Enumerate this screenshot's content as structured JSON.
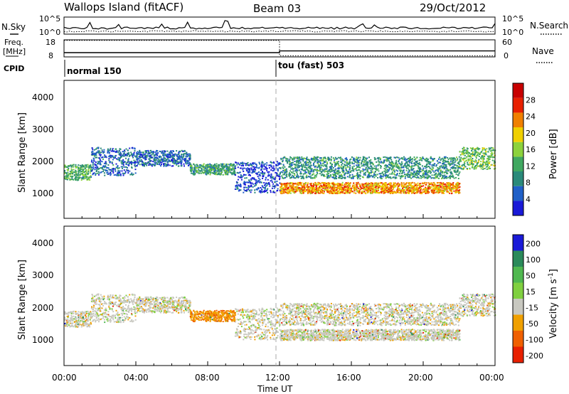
{
  "header": {
    "station": "Wallops Island (fitACF)",
    "beam": "Beam 03",
    "date": "29/Oct/2012"
  },
  "noise_panel": {
    "left_label": "N.Sky",
    "right_label": "N.Search",
    "left_ticks": [
      "10^5",
      "10^0"
    ],
    "right_ticks": [
      "10^5",
      "10^0"
    ]
  },
  "freq_panel": {
    "left_label_line1": "Freq.",
    "left_label_line2": "[MHz]",
    "right_label": "Nave",
    "left_ticks": [
      "18",
      "8"
    ],
    "right_ticks": [
      "60",
      "0"
    ],
    "switch_time_hours": 12.0,
    "freq_before_mhz": 10.5,
    "freq_after_mhz": 11.5,
    "nave_before": 58,
    "nave_after": 4
  },
  "cpid_panel": {
    "label": "CPID",
    "modes": [
      {
        "label": "normal 150",
        "start_hours": 0.0
      },
      {
        "label": "tou (fast) 503",
        "start_hours": 12.0
      }
    ]
  },
  "x_axis": {
    "label": "Time UT",
    "tick_labels": [
      "00:00",
      "04:00",
      "08:00",
      "12:00",
      "16:00",
      "20:00",
      "00:00"
    ],
    "range_hours": [
      0,
      24
    ]
  },
  "power_panel": {
    "ylabel": "Slant Range [km]",
    "y_ticks": [
      "1000",
      "2000",
      "3000",
      "4000"
    ],
    "colorbar_label": "Power [dB]",
    "colorbar_ticks": [
      "4",
      "8",
      "12",
      "16",
      "20",
      "24",
      "28"
    ]
  },
  "velocity_panel": {
    "ylabel": "Slant Range [km]",
    "y_ticks": [
      "1000",
      "2000",
      "3000",
      "4000"
    ],
    "colorbar_label": "Velocity [m s",
    "colorbar_label_sup": "-1",
    "colorbar_label_end": "]",
    "colorbar_ticks": [
      "200",
      "100",
      "50",
      "15",
      "-15",
      "-50",
      "-100",
      "-200"
    ]
  },
  "chart_data": {
    "type": "heatmap",
    "title": "Wallops Island (fitACF) Beam 03 29/Oct/2012",
    "xlabel": "Time UT",
    "ylabel": "Slant Range [km]",
    "xlim_hours": [
      0,
      24
    ],
    "ylim_km": [
      180,
      4600
    ],
    "power_colorbar_db": [
      0,
      32
    ],
    "velocity_colorbar_ms": [
      -250,
      250
    ],
    "power_colors": [
      "#1a1ad8",
      "#2060c8",
      "#2a8a7a",
      "#40a860",
      "#8cd23c",
      "#f0d000",
      "#f08000",
      "#e82000",
      "#c80000"
    ],
    "velocity_colors": [
      "#1a1ad8",
      "#2a8a5a",
      "#50b850",
      "#80d040",
      "#c8c8c0",
      "#f0a000",
      "#f06000",
      "#e82000"
    ],
    "echo_bands": [
      {
        "t_start": 0.0,
        "t_end": 1.5,
        "r_center": 1650,
        "r_width": 500,
        "power_db": 12,
        "velocity_ms": 0
      },
      {
        "t_start": 1.5,
        "t_end": 4.0,
        "r_center": 2000,
        "r_width": 900,
        "power_db": 6,
        "velocity_ms": 0
      },
      {
        "t_start": 4.0,
        "t_end": 7.0,
        "r_center": 2100,
        "r_width": 500,
        "power_db": 6,
        "velocity_ms": 0
      },
      {
        "t_start": 7.0,
        "t_end": 9.5,
        "r_center": 1750,
        "r_width": 350,
        "power_db": 11,
        "velocity_ms": -40
      },
      {
        "t_start": 9.5,
        "t_end": 12.0,
        "r_center": 1500,
        "r_width": 1000,
        "power_db": 4,
        "velocity_ms": 0
      },
      {
        "t_start": 12.0,
        "t_end": 22.0,
        "r_center": 1150,
        "r_width": 350,
        "power_db": 22,
        "velocity_ms": 0
      },
      {
        "t_start": 12.0,
        "t_end": 22.0,
        "r_center": 1800,
        "r_width": 700,
        "power_db": 10,
        "velocity_ms": 0
      },
      {
        "t_start": 22.0,
        "t_end": 24.0,
        "r_center": 2100,
        "r_width": 700,
        "power_db": 14,
        "velocity_ms": 0
      }
    ]
  }
}
